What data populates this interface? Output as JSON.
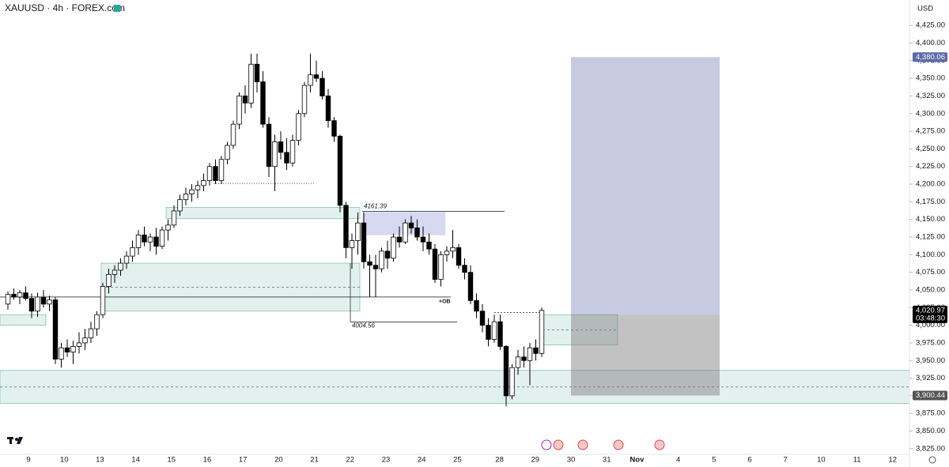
{
  "header": {
    "symbol": "XAUUSD · 4h · FOREX.com",
    "currency": "USD"
  },
  "chart_data": {
    "type": "candlestick",
    "categories": [
      "9",
      "10",
      "13",
      "14",
      "15",
      "16",
      "17",
      "20",
      "21",
      "22",
      "23",
      "24",
      "25",
      "28",
      "29",
      "30",
      "31",
      "Nov",
      "4",
      "5",
      "6",
      "7",
      "10",
      "11",
      "12"
    ],
    "ylim": [
      3817,
      4461
    ],
    "yticks": [
      {
        "value": 3825,
        "label": "3,825.00"
      },
      {
        "value": 3850,
        "label": "3,850.00"
      },
      {
        "value": 3875,
        "label": "3,875.00"
      },
      {
        "value": 3900,
        "label": "3,900.00"
      },
      {
        "value": 3925,
        "label": "3,925.00"
      },
      {
        "value": 3950,
        "label": "3,950.00"
      },
      {
        "value": 3975,
        "label": "3,975.00"
      },
      {
        "value": 4000,
        "label": "4,000.00"
      },
      {
        "value": 4025,
        "label": "4,025.00"
      },
      {
        "value": 4050,
        "label": "4,050.00"
      },
      {
        "value": 4075,
        "label": "4,075.00"
      },
      {
        "value": 4100,
        "label": "4,100.00"
      },
      {
        "value": 4125,
        "label": "4,125.00"
      },
      {
        "value": 4150,
        "label": "4,150.00"
      },
      {
        "value": 4175,
        "label": "4,175.00"
      },
      {
        "value": 4200,
        "label": "4,200.00"
      },
      {
        "value": 4225,
        "label": "4,225.00"
      },
      {
        "value": 4250,
        "label": "4,250.00"
      },
      {
        "value": 4275,
        "label": "4,275.00"
      },
      {
        "value": 4300,
        "label": "4,300.00"
      },
      {
        "value": 4325,
        "label": "4,325.00"
      },
      {
        "value": 4350,
        "label": "4,350.00"
      },
      {
        "value": 4375,
        "label": "4,375.00"
      },
      {
        "value": 4400,
        "label": "4,400.00"
      },
      {
        "value": 4425,
        "label": "4,425.00"
      }
    ],
    "ohlc": [
      [
        4030,
        4048,
        4022,
        4044
      ],
      [
        4044,
        4052,
        4036,
        4040
      ],
      [
        4040,
        4050,
        4030,
        4046
      ],
      [
        4046,
        4055,
        4035,
        4038
      ],
      [
        4038,
        4045,
        4010,
        4020
      ],
      [
        4020,
        4046,
        4012,
        4040
      ],
      [
        4040,
        4050,
        4025,
        4030
      ],
      [
        4030,
        4042,
        4020,
        4036
      ],
      [
        4036,
        4040,
        3945,
        3952
      ],
      [
        3952,
        3975,
        3940,
        3968
      ],
      [
        3968,
        3980,
        3955,
        3962
      ],
      [
        3962,
        3978,
        3945,
        3970
      ],
      [
        3970,
        3990,
        3960,
        3975
      ],
      [
        3975,
        3995,
        3965,
        3982
      ],
      [
        3982,
        4005,
        3975,
        3995
      ],
      [
        3995,
        4020,
        3985,
        4015
      ],
      [
        4015,
        4060,
        4010,
        4055
      ],
      [
        4055,
        4080,
        4045,
        4072
      ],
      [
        4072,
        4085,
        4060,
        4078
      ],
      [
        4078,
        4095,
        4070,
        4088
      ],
      [
        4088,
        4105,
        4080,
        4098
      ],
      [
        4098,
        4120,
        4090,
        4110
      ],
      [
        4110,
        4135,
        4100,
        4128
      ],
      [
        4128,
        4140,
        4112,
        4118
      ],
      [
        4118,
        4130,
        4105,
        4125
      ],
      [
        4125,
        4138,
        4100,
        4112
      ],
      [
        4112,
        4140,
        4108,
        4135
      ],
      [
        4135,
        4150,
        4120,
        4142
      ],
      [
        4142,
        4170,
        4138,
        4162
      ],
      [
        4162,
        4185,
        4155,
        4178
      ],
      [
        4178,
        4195,
        4170,
        4186
      ],
      [
        4186,
        4200,
        4175,
        4192
      ],
      [
        4192,
        4205,
        4180,
        4198
      ],
      [
        4198,
        4215,
        4190,
        4205
      ],
      [
        4205,
        4230,
        4198,
        4225
      ],
      [
        4225,
        4235,
        4200,
        4205
      ],
      [
        4205,
        4240,
        4200,
        4235
      ],
      [
        4235,
        4260,
        4228,
        4255
      ],
      [
        4255,
        4290,
        4250,
        4285
      ],
      [
        4285,
        4330,
        4278,
        4325
      ],
      [
        4325,
        4340,
        4300,
        4315
      ],
      [
        4315,
        4385,
        4308,
        4370
      ],
      [
        4370,
        4385,
        4330,
        4345
      ],
      [
        4345,
        4360,
        4280,
        4285
      ],
      [
        4285,
        4295,
        4210,
        4225
      ],
      [
        4225,
        4270,
        4190,
        4260
      ],
      [
        4260,
        4275,
        4235,
        4245
      ],
      [
        4245,
        4265,
        4220,
        4230
      ],
      [
        4230,
        4270,
        4225,
        4262
      ],
      [
        4262,
        4305,
        4255,
        4300
      ],
      [
        4300,
        4345,
        4295,
        4340
      ],
      [
        4340,
        4385,
        4330,
        4355
      ],
      [
        4355,
        4375,
        4345,
        4350
      ],
      [
        4350,
        4360,
        4320,
        4325
      ],
      [
        4325,
        4335,
        4280,
        4290
      ],
      [
        4290,
        4295,
        4260,
        4268
      ],
      [
        4268,
        4270,
        4160,
        4170
      ],
      [
        4170,
        4175,
        4095,
        4110
      ],
      [
        4110,
        4130,
        4080,
        4120
      ],
      [
        4120,
        4160,
        4100,
        4145
      ],
      [
        4145,
        4160,
        4080,
        4090
      ],
      [
        4090,
        4100,
        4040,
        4085
      ],
      [
        4085,
        4100,
        4040,
        4080
      ],
      [
        4080,
        4110,
        4075,
        4105
      ],
      [
        4105,
        4120,
        4080,
        4095
      ],
      [
        4095,
        4130,
        4090,
        4125
      ],
      [
        4125,
        4140,
        4110,
        4118
      ],
      [
        4118,
        4150,
        4115,
        4145
      ],
      [
        4145,
        4155,
        4130,
        4138
      ],
      [
        4138,
        4150,
        4120,
        4125
      ],
      [
        4125,
        4140,
        4105,
        4118
      ],
      [
        4118,
        4130,
        4100,
        4108
      ],
      [
        4108,
        4115,
        4060,
        4065
      ],
      [
        4065,
        4105,
        4055,
        4100
      ],
      [
        4100,
        4112,
        4090,
        4105
      ],
      [
        4105,
        4135,
        4095,
        4110
      ],
      [
        4110,
        4115,
        4080,
        4085
      ],
      [
        4085,
        4095,
        4065,
        4075
      ],
      [
        4075,
        4085,
        4030,
        4035
      ],
      [
        4035,
        4045,
        4010,
        4020
      ],
      [
        4020,
        4030,
        3990,
        4000
      ],
      [
        4000,
        4010,
        3970,
        3980
      ],
      [
        3980,
        4015,
        3975,
        4005
      ],
      [
        4005,
        4015,
        3965,
        3970
      ],
      [
        3970,
        3972,
        3885,
        3900
      ],
      [
        3900,
        3945,
        3895,
        3940
      ],
      [
        3940,
        3965,
        3930,
        3955
      ],
      [
        3955,
        3970,
        3940,
        3950
      ],
      [
        3950,
        3975,
        3915,
        3968
      ],
      [
        3968,
        3980,
        3950,
        3960
      ],
      [
        3960,
        4025,
        3955,
        4021
      ]
    ],
    "zones": [
      {
        "top": 4167,
        "bottom": 4151
      },
      {
        "top": 4088,
        "bottom": 4020
      },
      {
        "top": 3936,
        "bottom": 3889
      },
      {
        "top": 4015,
        "bottom": 4000
      },
      {
        "top": 4015,
        "bottom": 3972
      },
      {
        "top": 4160,
        "bottom": 4128
      }
    ],
    "position": {
      "target": 4380.06,
      "entry": 4015,
      "stop": 3900.44
    },
    "annotations": [
      {
        "value": 4161.39,
        "label": "4161.39"
      },
      {
        "value": 4004.56,
        "label": "4004.56"
      }
    ],
    "ob_label": "+OB",
    "price_badges": [
      {
        "value": 4380.06,
        "label": "4,380.06",
        "color": "#5c6aa8"
      },
      {
        "value": 4020.97,
        "label": "4,020.97",
        "color": "#000000"
      },
      {
        "value": 3900.44,
        "label": "3,900.44",
        "color": "#555555"
      }
    ],
    "countdown": "03:48:30"
  }
}
